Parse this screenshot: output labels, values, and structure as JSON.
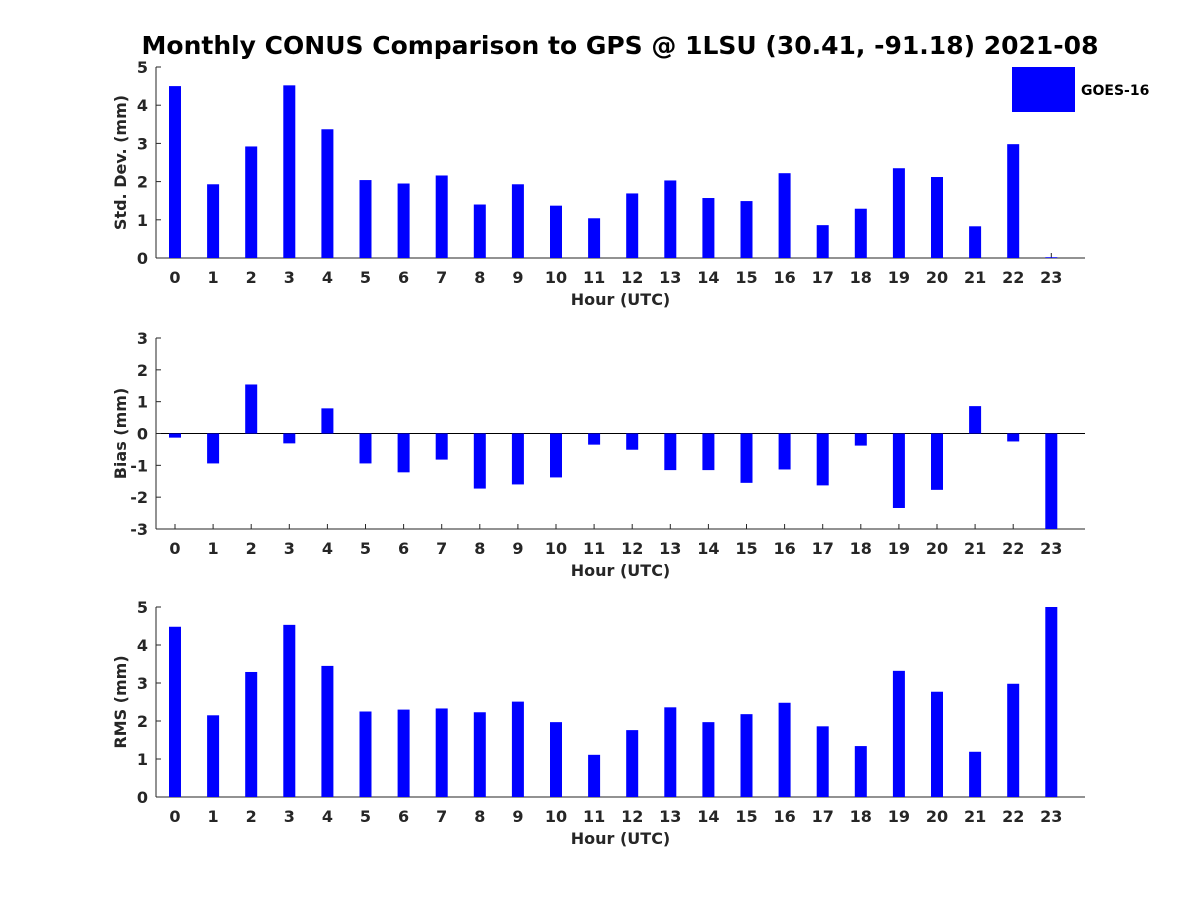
{
  "title": "Monthly CONUS Comparison to GPS @ 1LSU (30.41, -91.18) 2021-08",
  "legend": {
    "label": "GOES-16",
    "color": "#0000ff",
    "position": "top-right"
  },
  "chart_data": [
    {
      "type": "bar",
      "name": "std-dev",
      "title": "Monthly CONUS Comparison to GPS @ 1LSU (30.41, -91.18) 2021-08",
      "xlabel": "Hour (UTC)",
      "ylabel": "Std. Dev. (mm)",
      "ylim": [
        0,
        5
      ],
      "yticks": [
        0,
        1,
        2,
        3,
        4,
        5
      ],
      "categories": [
        "0",
        "1",
        "2",
        "3",
        "4",
        "5",
        "6",
        "7",
        "8",
        "9",
        "10",
        "11",
        "12",
        "13",
        "14",
        "15",
        "16",
        "17",
        "18",
        "19",
        "20",
        "21",
        "22",
        "23"
      ],
      "series": [
        {
          "name": "GOES-16",
          "color": "#0000ff",
          "values": [
            4.5,
            1.93,
            2.92,
            4.52,
            3.37,
            2.04,
            1.95,
            2.16,
            1.4,
            1.93,
            1.37,
            1.04,
            1.69,
            2.03,
            1.57,
            1.49,
            2.22,
            0.86,
            1.29,
            2.35,
            2.12,
            0.83,
            2.98,
            0.02
          ]
        }
      ]
    },
    {
      "type": "bar",
      "name": "bias",
      "xlabel": "Hour (UTC)",
      "ylabel": "Bias (mm)",
      "ylim": [
        -3,
        3
      ],
      "yticks": [
        -3,
        -2,
        -1,
        0,
        1,
        2,
        3
      ],
      "categories": [
        "0",
        "1",
        "2",
        "3",
        "4",
        "5",
        "6",
        "7",
        "8",
        "9",
        "10",
        "11",
        "12",
        "13",
        "14",
        "15",
        "16",
        "17",
        "18",
        "19",
        "20",
        "21",
        "22",
        "23"
      ],
      "series": [
        {
          "name": "GOES-16",
          "color": "#0000ff",
          "values": [
            -0.13,
            -0.94,
            1.54,
            -0.31,
            0.79,
            -0.94,
            -1.22,
            -0.82,
            -1.73,
            -1.6,
            -1.38,
            -0.35,
            -0.51,
            -1.15,
            -1.15,
            -1.55,
            -1.13,
            -1.63,
            -0.38,
            -2.34,
            -1.77,
            0.86,
            -0.25,
            -3.0
          ]
        }
      ]
    },
    {
      "type": "bar",
      "name": "rms",
      "xlabel": "Hour (UTC)",
      "ylabel": "RMS (mm)",
      "ylim": [
        0,
        5
      ],
      "yticks": [
        0,
        1,
        2,
        3,
        4,
        5
      ],
      "categories": [
        "0",
        "1",
        "2",
        "3",
        "4",
        "5",
        "6",
        "7",
        "8",
        "9",
        "10",
        "11",
        "12",
        "13",
        "14",
        "15",
        "16",
        "17",
        "18",
        "19",
        "20",
        "21",
        "22",
        "23"
      ],
      "series": [
        {
          "name": "GOES-16",
          "color": "#0000ff",
          "values": [
            4.48,
            2.15,
            3.29,
            4.53,
            3.45,
            2.25,
            2.3,
            2.33,
            2.23,
            2.51,
            1.97,
            1.11,
            1.76,
            2.36,
            1.97,
            2.18,
            2.48,
            1.86,
            1.34,
            3.32,
            2.77,
            1.19,
            2.98,
            5.0
          ]
        }
      ]
    }
  ]
}
